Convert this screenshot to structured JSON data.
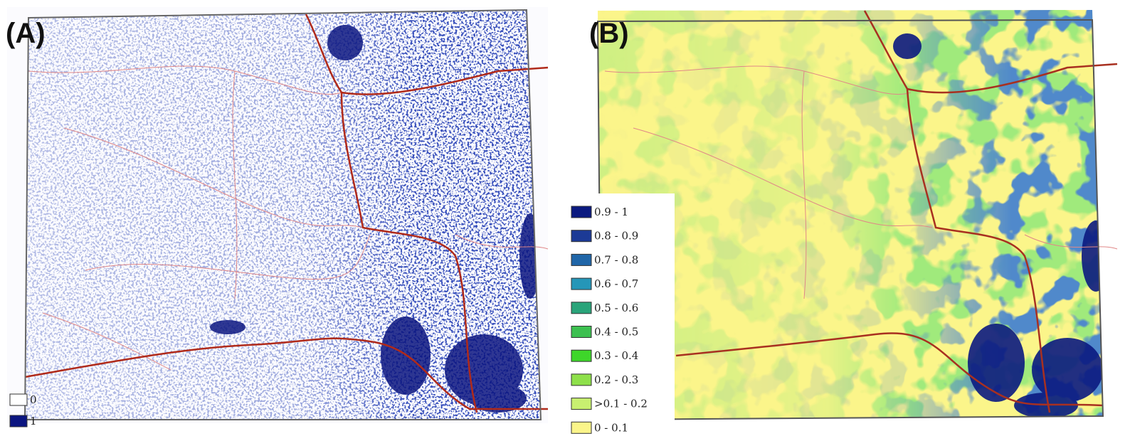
{
  "panels": [
    {
      "label": "(A)",
      "legend": [
        {
          "label": "0",
          "color": "#ffffff"
        },
        {
          "label": "1",
          "color": "#0b1580"
        }
      ]
    },
    {
      "label": "(B)",
      "legend": [
        {
          "label": "0.9 - 1",
          "color": "#0b1a80"
        },
        {
          "label": "0.8 - 0.9",
          "color": "#1c3a96"
        },
        {
          "label": "0.7 - 0.8",
          "color": "#2066a8"
        },
        {
          "label": "0.6 - 0.7",
          "color": "#2596b8"
        },
        {
          "label": "0.5 - 0.6",
          "color": "#2aa47a"
        },
        {
          "label": "0.4 - 0.5",
          "color": "#3cc050"
        },
        {
          "label": "0.3 - 0.4",
          "color": "#3ed62a"
        },
        {
          "label": "0.2 - 0.3",
          "color": "#8ee04a"
        },
        {
          "label": ">0.1 - 0.2",
          "color": "#c8f070"
        },
        {
          "label": "0 - 0.1",
          "color": "#fbf58a"
        }
      ]
    }
  ]
}
